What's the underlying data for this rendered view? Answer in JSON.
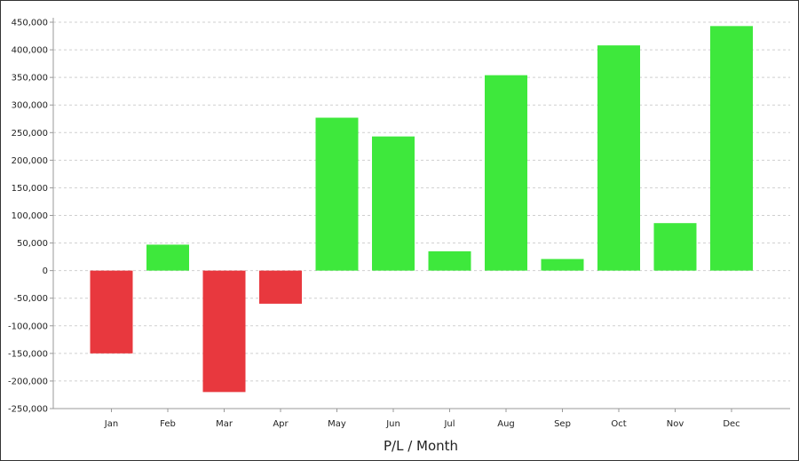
{
  "chart_data": {
    "type": "bar",
    "title": "",
    "xlabel": "P/L / Month",
    "ylabel": "",
    "categories": [
      "Jan",
      "Feb",
      "Mar",
      "Apr",
      "May",
      "Jun",
      "Jul",
      "Aug",
      "Sep",
      "Oct",
      "Nov",
      "Dec"
    ],
    "values": [
      -150000,
      47000,
      -220000,
      -60000,
      277000,
      243000,
      35000,
      354000,
      21000,
      408000,
      86000,
      443000
    ],
    "ylim": [
      -250000,
      450000
    ],
    "yticks": [
      "450,000",
      "400,000",
      "350,000",
      "300,000",
      "250,000",
      "200,000",
      "150,000",
      "100,000",
      "50,000",
      "0",
      "-50,000",
      "-100,000",
      "-150,000",
      "-200,000",
      "-250,000"
    ],
    "grid": true,
    "legend": "none",
    "colors": {
      "positive": "#3ee83c",
      "negative": "#e8383e",
      "grid": "#cfcfcf",
      "axis": "#999999"
    }
  }
}
